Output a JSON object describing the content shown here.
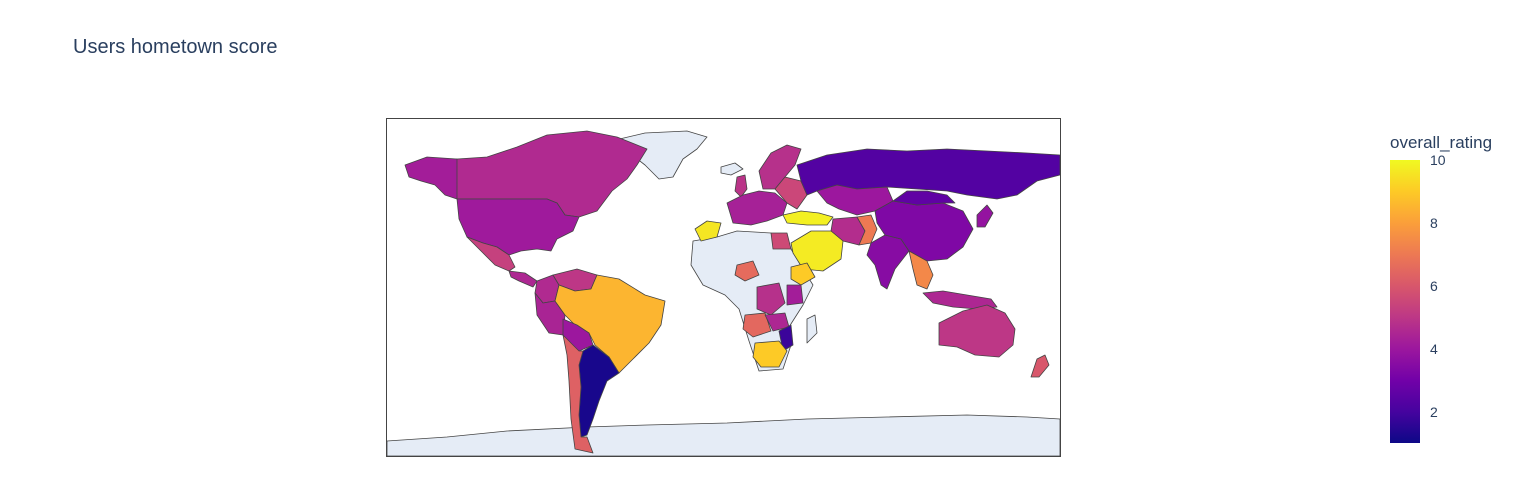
{
  "title": "Users hometown score",
  "colorbar": {
    "title": "overall_rating",
    "ticks": [
      "10",
      "8",
      "6",
      "4",
      "2"
    ],
    "tick_values": [
      10,
      8,
      6,
      4,
      2
    ],
    "range": [
      1,
      10
    ],
    "colorscale": [
      "#0d0887",
      "#46039f",
      "#7201a8",
      "#9c179e",
      "#bd3786",
      "#d8576b",
      "#ed7953",
      "#fb9f3a",
      "#fdca26",
      "#f0f921"
    ]
  },
  "map": {
    "projection": "equirectangular",
    "no_data_color": "#e5ecf6",
    "border_color": "#444444",
    "regions": [
      {
        "name": "Canada",
        "rating": 4.6
      },
      {
        "name": "Alaska",
        "rating": 4.2
      },
      {
        "name": "United States",
        "rating": 4.1
      },
      {
        "name": "Mexico",
        "rating": 5.3
      },
      {
        "name": "Central America",
        "rating": 4.5
      },
      {
        "name": "Colombia",
        "rating": 4.6
      },
      {
        "name": "Venezuela",
        "rating": 5.0
      },
      {
        "name": "Peru",
        "rating": 4.4
      },
      {
        "name": "Brazil",
        "rating": 8.5
      },
      {
        "name": "Bolivia",
        "rating": 4.0
      },
      {
        "name": "Argentina",
        "rating": 1.2
      },
      {
        "name": "Chile",
        "rating": 6.3
      },
      {
        "name": "Greenland",
        "rating": null
      },
      {
        "name": "Iceland",
        "rating": null
      },
      {
        "name": "United Kingdom",
        "rating": 4.9
      },
      {
        "name": "Scandinavia",
        "rating": 4.8
      },
      {
        "name": "Western Europe",
        "rating": 4.3
      },
      {
        "name": "Eastern Europe",
        "rating": 5.5
      },
      {
        "name": "Turkey",
        "rating": 9.8
      },
      {
        "name": "Russia",
        "rating": 2.3
      },
      {
        "name": "Kazakhstan",
        "rating": 4.0
      },
      {
        "name": "Iran",
        "rating": 4.7
      },
      {
        "name": "Pakistan",
        "rating": 7.0
      },
      {
        "name": "Saudi Arabia",
        "rating": 9.7
      },
      {
        "name": "India",
        "rating": 3.5
      },
      {
        "name": "China",
        "rating": 3.3
      },
      {
        "name": "Mongolia",
        "rating": 2.6
      },
      {
        "name": "Southeast Asia",
        "rating": 7.4
      },
      {
        "name": "Indonesia",
        "rating": 4.5
      },
      {
        "name": "Australia",
        "rating": 5.0
      },
      {
        "name": "New Zealand",
        "rating": 6.0
      },
      {
        "name": "Japan",
        "rating": 3.8
      },
      {
        "name": "Morocco",
        "rating": 9.6
      },
      {
        "name": "Egypt",
        "rating": 5.6
      },
      {
        "name": "Nigeria",
        "rating": 6.6
      },
      {
        "name": "Ethiopia",
        "rating": 9.0
      },
      {
        "name": "Kenya",
        "rating": 4.2
      },
      {
        "name": "DR Congo",
        "rating": 4.8
      },
      {
        "name": "Angola",
        "rating": 6.5
      },
      {
        "name": "Zambia",
        "rating": 4.5
      },
      {
        "name": "Mozambique",
        "rating": 1.8
      },
      {
        "name": "South Africa",
        "rating": 9.0
      },
      {
        "name": "Africa (no data)",
        "rating": null
      },
      {
        "name": "Madagascar",
        "rating": null
      },
      {
        "name": "Antarctica",
        "rating": null
      }
    ]
  }
}
